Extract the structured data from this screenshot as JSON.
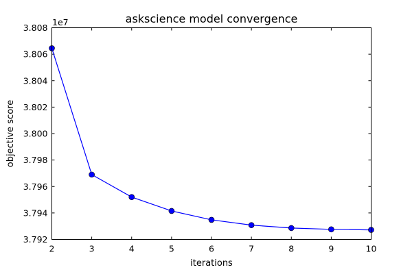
{
  "chart_data": {
    "type": "line",
    "title": "askscience model convergence",
    "xlabel": "iterations",
    "ylabel": "objective score",
    "y_offset_label": "1e7",
    "xlim": [
      2,
      10
    ],
    "ylim": [
      3.792,
      3.808
    ],
    "x_ticks": [
      "2",
      "3",
      "4",
      "5",
      "6",
      "7",
      "8",
      "9",
      "10"
    ],
    "y_ticks": [
      "3.792",
      "3.794",
      "3.796",
      "3.798",
      "3.800",
      "3.802",
      "3.804",
      "3.806",
      "3.808"
    ],
    "grid": false,
    "series": [
      {
        "x": [
          2,
          3,
          4,
          5,
          6,
          7,
          8,
          9,
          10
        ],
        "values": [
          3.80645,
          3.7969,
          3.7952,
          3.79415,
          3.79348,
          3.79308,
          3.79286,
          3.79276,
          3.79272
        ],
        "color": "#0000ff",
        "marker": "circle"
      }
    ]
  }
}
